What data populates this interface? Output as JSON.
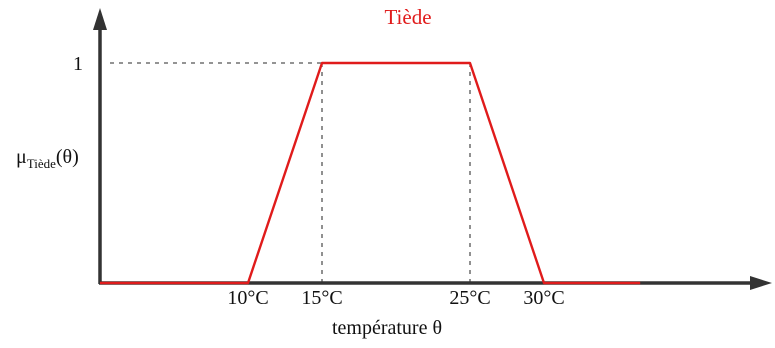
{
  "chart_data": {
    "type": "line",
    "title": "Tiède",
    "xlabel": "température θ",
    "ylabel": {
      "base": "μ",
      "subscript": "Tiède",
      "suffix": "(θ)"
    },
    "y_tick_label": "1",
    "x_ticks": [
      {
        "value": 10,
        "label": "10°C"
      },
      {
        "value": 15,
        "label": "15°C"
      },
      {
        "value": 25,
        "label": "25°C"
      },
      {
        "value": 30,
        "label": "30°C"
      }
    ],
    "series": [
      {
        "color": "#e01b1b",
        "x": [
          0,
          10,
          15,
          25,
          30,
          36.5
        ],
        "y": [
          0,
          0,
          1,
          1,
          0,
          0
        ]
      }
    ],
    "xlim": [
      0,
      36.5
    ],
    "ylim": [
      0,
      1
    ],
    "grid": false,
    "guide_lines": "dashed vertical lines at 15 and 25, dashed horizontal line at y=1",
    "colors": {
      "series": "#e01b1b",
      "title": "#e01b1b",
      "axes": "#333333",
      "guides": "#555555"
    }
  }
}
